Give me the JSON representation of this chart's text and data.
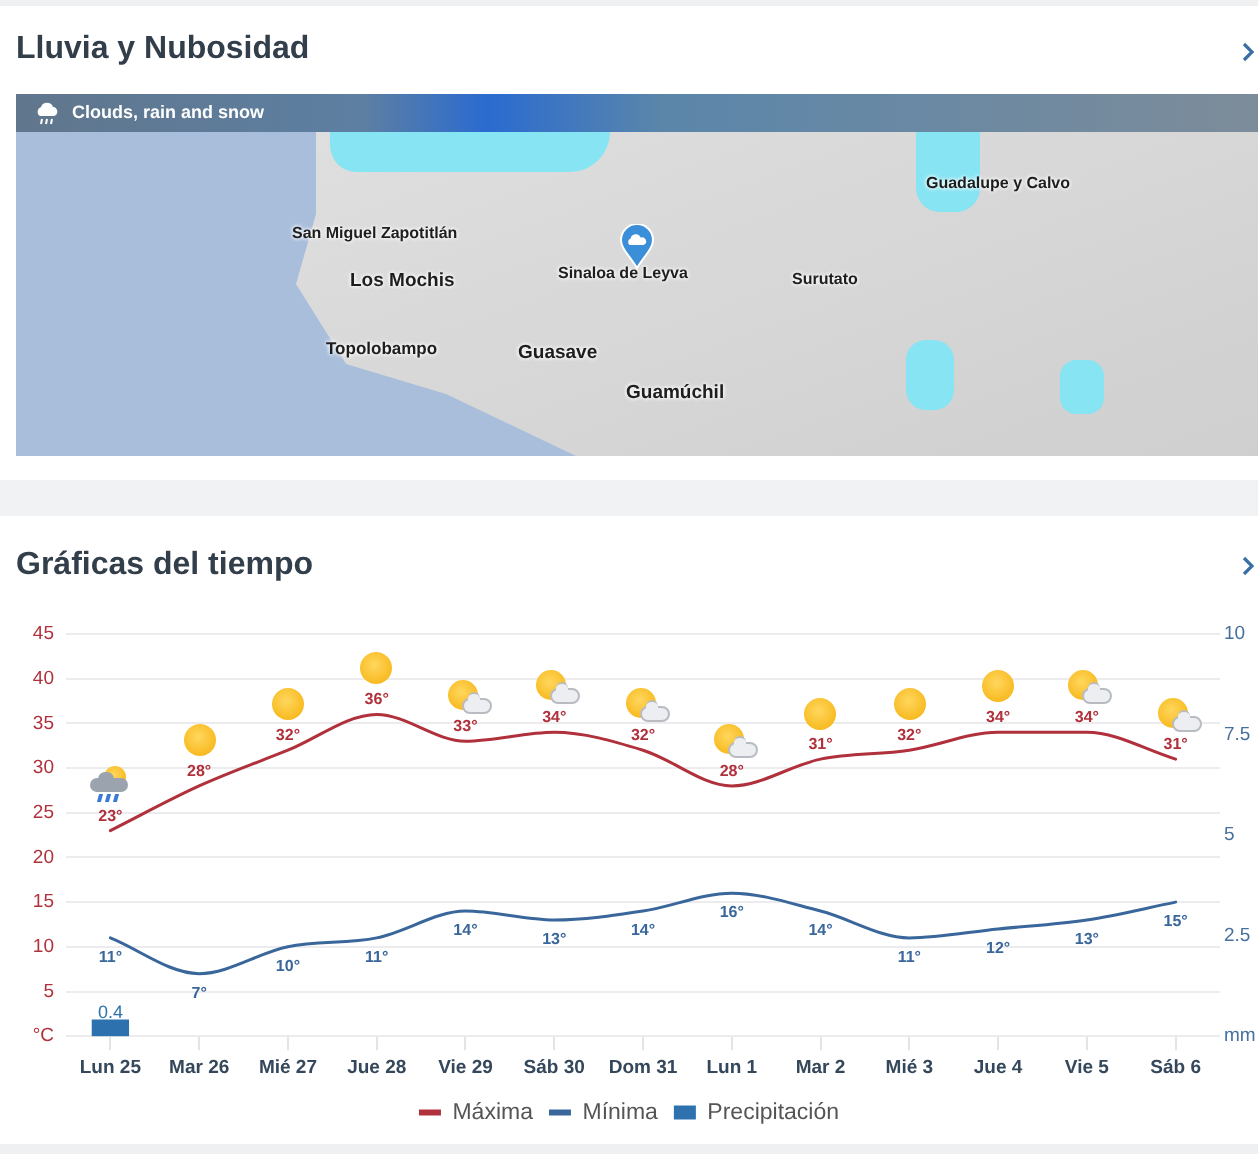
{
  "chart_data": [
    {
      "type": "other",
      "title": "Lluvia y Nubosidad",
      "annotations": [
        "Clouds, rain and snow",
        "San Miguel Zapotitlán",
        "Los Mochis",
        "Sinaloa de Leyva",
        "Surutato",
        "Guadalupe y Calvo",
        "Topolobampo",
        "Guasave",
        "Guamúchil"
      ]
    },
    {
      "type": "line",
      "title": "Gráficas del tiempo",
      "categories": [
        "Lun 25",
        "Mar 26",
        "Mié 27",
        "Jue 28",
        "Vie 29",
        "Sáb 30",
        "Dom 31",
        "Lun 1",
        "Mar 2",
        "Mié 3",
        "Jue 4",
        "Vie 5",
        "Sáb 6"
      ],
      "series": [
        {
          "name": "Máxima",
          "color": "#b0303b",
          "values": [
            23,
            28,
            32,
            36,
            33,
            34,
            32,
            28,
            31,
            32,
            34,
            34,
            31
          ],
          "value_labels": [
            "23°",
            "28°",
            "32°",
            "36°",
            "33°",
            "34°",
            "32°",
            "28°",
            "31°",
            "32°",
            "34°",
            "34°",
            "31°"
          ]
        },
        {
          "name": "Mínima",
          "color": "#3a679b",
          "values": [
            11,
            7,
            10,
            11,
            14,
            13,
            14,
            16,
            14,
            11,
            12,
            13,
            15
          ],
          "value_labels": [
            "11°",
            "7°",
            "10°",
            "11°",
            "14°",
            "13°",
            "14°",
            "16°",
            "14°",
            "11°",
            "12°",
            "13°",
            "15°"
          ]
        },
        {
          "name": "Precipitación",
          "type": "bar",
          "axis": "y2",
          "color": "#2d72ae",
          "values": [
            0.4,
            null,
            null,
            null,
            null,
            null,
            null,
            null,
            null,
            null,
            null,
            null,
            null
          ],
          "value_labels": [
            "0.4",
            null,
            null,
            null,
            null,
            null,
            null,
            null,
            null,
            null,
            null,
            null,
            null
          ]
        }
      ],
      "ylim": [
        0,
        45
      ],
      "yticks": [
        {
          "value": 0,
          "label": "°C"
        },
        5,
        10,
        15,
        20,
        25,
        30,
        35,
        40,
        45
      ],
      "y2lim": [
        0,
        10
      ],
      "y2ticks": [
        {
          "value": 0,
          "label": "mm"
        },
        2.5,
        5,
        7.5,
        10
      ],
      "grid": "y",
      "legend": "bottom",
      "marker": "none"
    }
  ]
}
